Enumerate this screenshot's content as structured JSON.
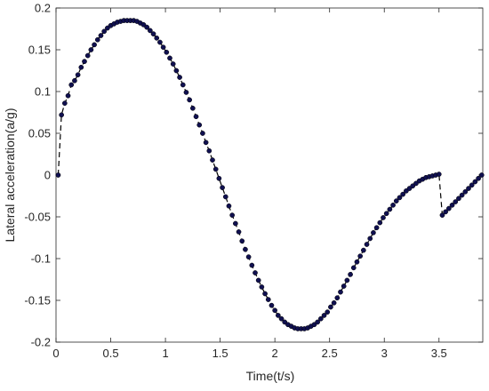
{
  "chart_data": {
    "type": "line",
    "title": "",
    "xlabel": "Time(t/s)",
    "ylabel": "Lateral acceleration(a/g)",
    "xlim": [
      0,
      3.9
    ],
    "ylim": [
      -0.2,
      0.2
    ],
    "x_ticks": [
      0,
      0.5,
      1,
      1.5,
      2,
      2.5,
      3,
      3.5
    ],
    "x_tick_labels": [
      "0",
      "0.5",
      "1",
      "1.5",
      "2",
      "2.5",
      "3",
      "3.5"
    ],
    "y_ticks": [
      -0.2,
      -0.15,
      -0.1,
      -0.05,
      0,
      0.05,
      0.1,
      0.15,
      0.2
    ],
    "y_tick_labels": [
      "-0.2",
      "-0.15",
      "-0.1",
      "-0.05",
      "0",
      "0.05",
      "0.1",
      "0.15",
      "0.2"
    ],
    "grid": false,
    "legend": "none",
    "series": [
      {
        "line_style": "dashed",
        "marker": "filled-circle",
        "color": "#101050",
        "x": [
          0.02,
          0.05,
          0.08,
          0.11,
          0.14,
          0.17,
          0.2,
          0.23,
          0.26,
          0.29,
          0.32,
          0.35,
          0.38,
          0.41,
          0.44,
          0.47,
          0.5,
          0.53,
          0.56,
          0.59,
          0.62,
          0.65,
          0.68,
          0.71,
          0.74,
          0.77,
          0.8,
          0.83,
          0.86,
          0.89,
          0.92,
          0.95,
          0.98,
          1.01,
          1.04,
          1.07,
          1.1,
          1.13,
          1.16,
          1.19,
          1.22,
          1.25,
          1.28,
          1.31,
          1.34,
          1.37,
          1.4,
          1.43,
          1.46,
          1.49,
          1.52,
          1.55,
          1.58,
          1.61,
          1.64,
          1.67,
          1.7,
          1.73,
          1.76,
          1.79,
          1.82,
          1.85,
          1.88,
          1.91,
          1.94,
          1.97,
          2.0,
          2.03,
          2.06,
          2.09,
          2.12,
          2.15,
          2.18,
          2.21,
          2.24,
          2.27,
          2.3,
          2.33,
          2.36,
          2.39,
          2.42,
          2.45,
          2.48,
          2.51,
          2.54,
          2.57,
          2.6,
          2.63,
          2.66,
          2.69,
          2.72,
          2.75,
          2.78,
          2.81,
          2.84,
          2.87,
          2.9,
          2.93,
          2.96,
          2.99,
          3.02,
          3.05,
          3.08,
          3.11,
          3.14,
          3.17,
          3.2,
          3.23,
          3.26,
          3.29,
          3.32,
          3.35,
          3.38,
          3.41,
          3.44,
          3.47,
          3.5,
          3.53,
          3.56,
          3.59,
          3.62,
          3.65,
          3.68,
          3.71,
          3.74,
          3.77,
          3.8,
          3.83,
          3.86,
          3.89
        ],
        "y": [
          0.0,
          0.072,
          0.086,
          0.095,
          0.108,
          0.113,
          0.12,
          0.129,
          0.136,
          0.143,
          0.15,
          0.156,
          0.162,
          0.167,
          0.172,
          0.176,
          0.179,
          0.181,
          0.183,
          0.184,
          0.185,
          0.185,
          0.185,
          0.185,
          0.184,
          0.182,
          0.18,
          0.177,
          0.173,
          0.169,
          0.164,
          0.159,
          0.153,
          0.147,
          0.14,
          0.133,
          0.125,
          0.117,
          0.108,
          0.099,
          0.09,
          0.08,
          0.07,
          0.06,
          0.05,
          0.039,
          0.029,
          0.018,
          0.007,
          -0.004,
          -0.015,
          -0.026,
          -0.037,
          -0.048,
          -0.058,
          -0.068,
          -0.079,
          -0.089,
          -0.098,
          -0.108,
          -0.117,
          -0.126,
          -0.134,
          -0.142,
          -0.149,
          -0.156,
          -0.162,
          -0.168,
          -0.172,
          -0.176,
          -0.179,
          -0.181,
          -0.183,
          -0.184,
          -0.184,
          -0.184,
          -0.183,
          -0.181,
          -0.179,
          -0.176,
          -0.172,
          -0.168,
          -0.164,
          -0.158,
          -0.153,
          -0.147,
          -0.14,
          -0.133,
          -0.126,
          -0.119,
          -0.111,
          -0.104,
          -0.097,
          -0.09,
          -0.083,
          -0.076,
          -0.069,
          -0.063,
          -0.057,
          -0.051,
          -0.046,
          -0.041,
          -0.036,
          -0.031,
          -0.027,
          -0.023,
          -0.019,
          -0.016,
          -0.013,
          -0.01,
          -0.007,
          -0.005,
          -0.003,
          -0.002,
          -0.001,
          0.0,
          0.001,
          -0.048,
          -0.044,
          -0.04,
          -0.036,
          -0.032,
          -0.028,
          -0.024,
          -0.02,
          -0.016,
          -0.012,
          -0.008,
          -0.004,
          0.0
        ]
      }
    ]
  }
}
